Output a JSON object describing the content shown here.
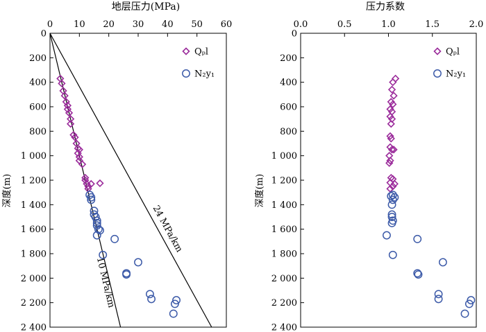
{
  "chart_data": [
    {
      "type": "scatter",
      "title": "地层压力(MPa)",
      "ylabel": "深度(m)",
      "xlim": [
        0,
        60
      ],
      "ylim": [
        0,
        2400
      ],
      "y_inverted": true,
      "x_axis_position": "top",
      "xticks": [
        "0",
        "10",
        "20",
        "30",
        "40",
        "50",
        "60"
      ],
      "yticks": [
        "0",
        "200",
        "400",
        "600",
        "800",
        "1 000",
        "1 200",
        "1 400",
        "1 600",
        "1 800",
        "2 000",
        "2 200",
        "2 400"
      ],
      "legend_position": "top-right",
      "colors": {
        "Qpl": "#9b2c9b",
        "N2y1": "#3c5aa8",
        "line": "#000000"
      },
      "series": [
        {
          "name": "Qₚl",
          "legend_label": "Qₚl",
          "marker": "diamond",
          "points": [
            [
              3.5,
              370
            ],
            [
              4,
              410
            ],
            [
              4.5,
              470
            ],
            [
              5,
              510
            ],
            [
              5.5,
              560
            ],
            [
              6,
              590
            ],
            [
              6,
              620
            ],
            [
              6.5,
              650
            ],
            [
              7,
              700
            ],
            [
              7,
              740
            ],
            [
              8,
              830
            ],
            [
              8.5,
              850
            ],
            [
              9,
              900
            ],
            [
              9.5,
              940
            ],
            [
              10,
              950
            ],
            [
              9.5,
              980
            ],
            [
              10,
              1010
            ],
            [
              10,
              1040
            ],
            [
              11,
              1070
            ],
            [
              12,
              1180
            ],
            [
              12,
              1200
            ],
            [
              12.5,
              1230
            ],
            [
              13,
              1250
            ],
            [
              13,
              1270
            ],
            [
              14,
              1230
            ],
            [
              17,
              1225
            ]
          ]
        },
        {
          "name": "N₂y₁",
          "legend_label": "N₂y₁",
          "marker": "circle",
          "points": [
            [
              13.5,
              1320
            ],
            [
              14,
              1340
            ],
            [
              14,
              1360
            ],
            [
              15,
              1450
            ],
            [
              15,
              1480
            ],
            [
              15.5,
              1500
            ],
            [
              16,
              1530
            ],
            [
              16,
              1550
            ],
            [
              16,
              1570
            ],
            [
              16.5,
              1600
            ],
            [
              17,
              1610
            ],
            [
              16,
              1650
            ],
            [
              22,
              1680
            ],
            [
              18,
              1810
            ],
            [
              30,
              1870
            ],
            [
              26,
              1960
            ],
            [
              26,
              1970
            ],
            [
              34,
              2130
            ],
            [
              34.5,
              2170
            ],
            [
              43,
              2180
            ],
            [
              42.5,
              2210
            ],
            [
              42,
              2290
            ]
          ]
        }
      ],
      "reference_lines": [
        {
          "label": "24 MPa/km",
          "from": [
            0,
            0
          ],
          "to": [
            55,
            2400
          ]
        },
        {
          "label": "10 MPa/km",
          "from": [
            0,
            0
          ],
          "to": [
            24,
            2400
          ]
        }
      ]
    },
    {
      "type": "scatter",
      "title": "压力系数",
      "ylabel": "深度(m)",
      "xlim": [
        0,
        2.0
      ],
      "ylim": [
        0,
        2400
      ],
      "y_inverted": true,
      "x_axis_position": "top",
      "xticks": [
        "0.0",
        "0.5",
        "1.0",
        "1.5",
        "2.0"
      ],
      "yticks": [
        "0",
        "200",
        "400",
        "600",
        "800",
        "1 000",
        "1 200",
        "1 400",
        "1 600",
        "1 800",
        "2 000",
        "2 200",
        "2 400"
      ],
      "legend_position": "top-right",
      "colors": {
        "Qpl": "#9b2c9b",
        "N2y1": "#3c5aa8"
      },
      "series": [
        {
          "name": "Qₚl",
          "legend_label": "Qₚl",
          "marker": "diamond",
          "points": [
            [
              1.08,
              370
            ],
            [
              1.05,
              400
            ],
            [
              1.04,
              460
            ],
            [
              1.06,
              510
            ],
            [
              1.03,
              560
            ],
            [
              1.05,
              580
            ],
            [
              1.02,
              620
            ],
            [
              1.04,
              640
            ],
            [
              1.02,
              680
            ],
            [
              1.04,
              700
            ],
            [
              1.03,
              740
            ],
            [
              1.02,
              840
            ],
            [
              1.03,
              860
            ],
            [
              1.02,
              930
            ],
            [
              1.04,
              950
            ],
            [
              1.06,
              950
            ],
            [
              1.01,
              1000
            ],
            [
              1.02,
              1040
            ],
            [
              1.01,
              1060
            ],
            [
              1.03,
              1180
            ],
            [
              1.05,
              1190
            ],
            [
              1.02,
              1220
            ],
            [
              1.07,
              1230
            ],
            [
              1.05,
              1250
            ],
            [
              1.02,
              1270
            ]
          ]
        },
        {
          "name": "N₂y₁",
          "legend_label": "N₂y₁",
          "marker": "circle",
          "points": [
            [
              1.05,
              1320
            ],
            [
              1.03,
              1330
            ],
            [
              1.07,
              1340
            ],
            [
              1.05,
              1360
            ],
            [
              1.04,
              1400
            ],
            [
              1.04,
              1480
            ],
            [
              1.04,
              1500
            ],
            [
              1.05,
              1530
            ],
            [
              1.04,
              1550
            ],
            [
              0.98,
              1650
            ],
            [
              1.33,
              1680
            ],
            [
              1.05,
              1810
            ],
            [
              1.62,
              1870
            ],
            [
              1.33,
              1960
            ],
            [
              1.34,
              1970
            ],
            [
              1.57,
              2130
            ],
            [
              1.57,
              2170
            ],
            [
              1.94,
              2180
            ],
            [
              1.92,
              2210
            ],
            [
              1.87,
              2290
            ]
          ]
        }
      ]
    }
  ]
}
